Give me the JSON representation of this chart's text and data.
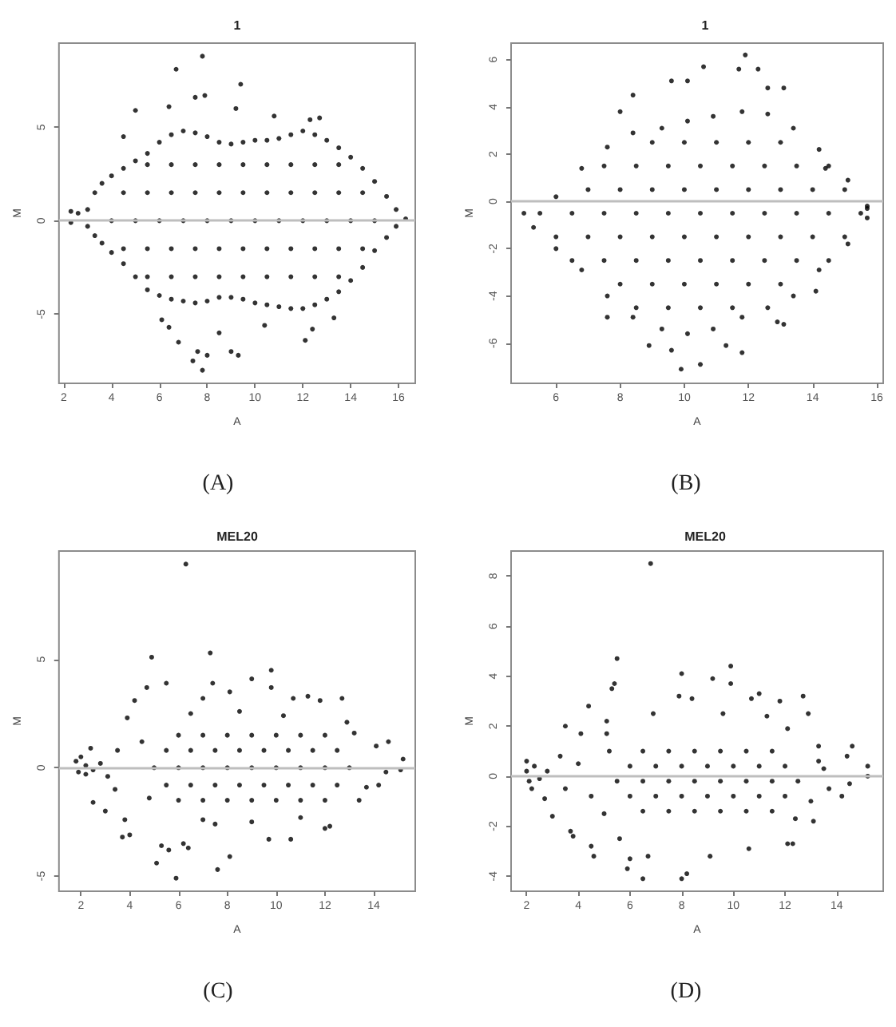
{
  "chart_data": [
    {
      "type": "scatter",
      "title": "1",
      "xlabel": "A",
      "ylabel": "M",
      "xlim": [
        1.8,
        16.7
      ],
      "ylim": [
        -8.7,
        9.5
      ],
      "xticks": [
        2,
        4,
        6,
        8,
        10,
        12,
        14,
        16
      ],
      "yticks": [
        -5,
        0,
        5
      ],
      "marker": "circle",
      "ref_lines": [
        {
          "axis": "y",
          "value": 0,
          "color": "#bebebe"
        }
      ],
      "annotations": [
        "(A)"
      ],
      "series": [
        {
          "color": "#000000",
          "x": [
            3,
            3.3,
            3.6,
            4,
            4.5,
            5,
            5.5,
            6,
            6.5,
            7,
            7.5,
            8,
            8.5,
            9,
            9.5,
            10,
            10.5,
            11,
            11.5,
            12,
            12.5,
            13,
            13.5,
            14,
            14.5,
            15,
            15.5,
            15.9,
            3,
            3.3,
            3.6,
            4,
            4.5,
            5,
            5.5,
            6,
            6.5,
            7,
            7.5,
            8,
            8.5,
            9,
            9.5,
            10,
            10.5,
            11,
            11.5,
            12,
            12.5,
            13,
            13.5,
            14,
            14.5,
            15,
            15.5,
            15.9,
            5.5,
            6.5,
            7.5,
            8.5,
            9.5,
            10.5,
            11.5,
            12.5,
            13.5,
            4.5,
            5.5,
            6.5,
            7.5,
            8.5,
            9.5,
            10.5,
            11.5,
            12.5,
            13.5,
            14.5,
            4,
            5,
            6,
            7,
            8,
            9,
            10,
            11,
            12,
            13,
            14,
            15,
            4.5,
            5.5,
            6.5,
            7.5,
            8.5,
            9.5,
            10.5,
            11.5,
            12.5,
            13.5,
            14.5,
            5.5,
            6.5,
            7.5,
            8.5,
            9.5,
            10.5,
            11.5,
            12.5,
            13.5,
            7.8,
            6.7,
            9.4,
            7.5,
            7.9,
            5,
            4.5,
            9.2,
            10.8,
            12.7,
            12.3,
            6.4,
            2.3,
            2.3,
            2.6,
            16.3,
            7.8,
            7.4,
            9.3,
            9,
            6.8,
            8,
            12.1,
            7.6,
            12.4,
            10.4,
            6.4,
            13.3,
            8.5,
            6.1
          ],
          "values": [
            0.6,
            1.5,
            2,
            2.4,
            2.8,
            3.2,
            3.6,
            4.2,
            4.6,
            4.8,
            4.7,
            4.5,
            4.2,
            4.1,
            4.2,
            4.3,
            4.3,
            4.4,
            4.6,
            4.8,
            4.6,
            4.3,
            3.9,
            3.4,
            2.8,
            2.1,
            1.3,
            0.6,
            -0.3,
            -0.8,
            -1.2,
            -1.7,
            -2.3,
            -3,
            -3.7,
            -4,
            -4.2,
            -4.3,
            -4.4,
            -4.3,
            -4.1,
            -4.1,
            -4.2,
            -4.4,
            -4.5,
            -4.6,
            -4.7,
            -4.7,
            -4.5,
            -4.2,
            -3.8,
            -3.2,
            -2.5,
            -1.6,
            -0.9,
            -0.3,
            3,
            3,
            3,
            3,
            3,
            3,
            3,
            3,
            3,
            1.5,
            1.5,
            1.5,
            1.5,
            1.5,
            1.5,
            1.5,
            1.5,
            1.5,
            1.5,
            1.5,
            0,
            0,
            0,
            0,
            0,
            0,
            0,
            0,
            0,
            0,
            0,
            0,
            -1.5,
            -1.5,
            -1.5,
            -1.5,
            -1.5,
            -1.5,
            -1.5,
            -1.5,
            -1.5,
            -1.5,
            -1.5,
            -3,
            -3,
            -3,
            -3,
            -3,
            -3,
            -3,
            -3,
            -3,
            8.8,
            8.1,
            7.3,
            6.6,
            6.7,
            5.9,
            4.5,
            6,
            5.6,
            5.5,
            5.4,
            6.1,
            0.5,
            -0.1,
            0.4,
            0.1,
            -8,
            -7.5,
            -7.2,
            -7,
            -6.5,
            -7.2,
            -6.4,
            -7,
            -5.8,
            -5.6,
            -5.7,
            -5.2,
            -6,
            -5.3
          ]
        }
      ]
    },
    {
      "type": "scatter",
      "title": "1",
      "xlabel": "A",
      "ylabel": "M",
      "xlim": [
        4.6,
        16.2
      ],
      "ylim": [
        -7.7,
        6.7
      ],
      "xticks": [
        6,
        8,
        10,
        12,
        14,
        16
      ],
      "yticks": [
        -6,
        -4,
        -2,
        0,
        2,
        4,
        6
      ],
      "marker": "circle",
      "ref_lines": [
        {
          "axis": "y",
          "value": 0,
          "color": "#bebebe"
        }
      ],
      "annotations": [
        "(B)"
      ],
      "series": [
        {
          "color": "#000000",
          "x": [
            5,
            6,
            6.8,
            7.6,
            8.4,
            9.3,
            10.1,
            10.9,
            11.8,
            12.6,
            13.4,
            14.2,
            15.1,
            15.7,
            5.3,
            6,
            6.8,
            7.6,
            8.4,
            9.3,
            10.1,
            10.9,
            11.8,
            12.6,
            13.4,
            14.2,
            15.1,
            15.7,
            9,
            10,
            11,
            12,
            13,
            7.5,
            8.5,
            9.5,
            10.5,
            11.5,
            12.5,
            13.5,
            14.5,
            7,
            8,
            9,
            10,
            11,
            12,
            13,
            14,
            15,
            5.5,
            6.5,
            7.5,
            8.5,
            9.5,
            10.5,
            11.5,
            12.5,
            13.5,
            14.5,
            15.5,
            6,
            7,
            8,
            9,
            10,
            11,
            12,
            13,
            14,
            15,
            6.5,
            7.5,
            8.5,
            9.5,
            10.5,
            11.5,
            12.5,
            13.5,
            14.5,
            8,
            9,
            10,
            11,
            12,
            13,
            8.5,
            9.5,
            10.5,
            11.5,
            11.9,
            12.3,
            11.7,
            10.6,
            10.1,
            9.6,
            8.4,
            12.6,
            13.1,
            8,
            14.4,
            9.9,
            10.5,
            11.3,
            11.8,
            8.9,
            9.6,
            7.6,
            12.9,
            13.1,
            14.1,
            15.7
          ],
          "values": [
            -0.5,
            0.2,
            1.4,
            2.3,
            2.9,
            3.1,
            3.4,
            3.6,
            3.8,
            3.7,
            3.1,
            2.2,
            0.9,
            -0.2,
            -1.1,
            -2,
            -2.9,
            -4,
            -4.9,
            -5.4,
            -5.6,
            -5.4,
            -4.9,
            -4.5,
            -4,
            -2.9,
            -1.8,
            -0.7,
            2.5,
            2.5,
            2.5,
            2.5,
            2.5,
            1.5,
            1.5,
            1.5,
            1.5,
            1.5,
            1.5,
            1.5,
            1.5,
            0.5,
            0.5,
            0.5,
            0.5,
            0.5,
            0.5,
            0.5,
            0.5,
            0.5,
            -0.5,
            -0.5,
            -0.5,
            -0.5,
            -0.5,
            -0.5,
            -0.5,
            -0.5,
            -0.5,
            -0.5,
            -0.5,
            -1.5,
            -1.5,
            -1.5,
            -1.5,
            -1.5,
            -1.5,
            -1.5,
            -1.5,
            -1.5,
            -1.5,
            -2.5,
            -2.5,
            -2.5,
            -2.5,
            -2.5,
            -2.5,
            -2.5,
            -2.5,
            -2.5,
            -3.5,
            -3.5,
            -3.5,
            -3.5,
            -3.5,
            -3.5,
            -4.5,
            -4.5,
            -4.5,
            -4.5,
            6.2,
            5.6,
            5.6,
            5.7,
            5.1,
            5.1,
            4.5,
            4.8,
            4.8,
            3.8,
            1.4,
            -7.1,
            -6.9,
            -6.1,
            -6.4,
            -6.1,
            -6.3,
            -4.9,
            -5.1,
            -5.2,
            -3.8,
            -0.3
          ]
        }
      ]
    },
    {
      "type": "scatter",
      "title": "MEL20",
      "xlabel": "A",
      "ylabel": "M",
      "xlim": [
        1.1,
        15.7
      ],
      "ylim": [
        -5.7,
        10
      ],
      "xticks": [
        2,
        4,
        6,
        8,
        10,
        12,
        14
      ],
      "yticks": [
        -5,
        0,
        5
      ],
      "marker": "circle",
      "ref_lines": [
        {
          "axis": "y",
          "value": 0,
          "color": "#bebebe"
        }
      ],
      "annotations": [
        "(C)"
      ],
      "series": [
        {
          "color": "#000000",
          "x": [
            6.3,
            4.9,
            7.3,
            5.5,
            7.4,
            9.8,
            9,
            9.8,
            8.1,
            4.7,
            4.2,
            7,
            10.7,
            11.3,
            11.8,
            12.7,
            12.9,
            3.9,
            2.4,
            14.1,
            14.6,
            15.2,
            15.1,
            14.5,
            14.2,
            5.9,
            7.6,
            8.1,
            5.1,
            3.7,
            4,
            5.3,
            5.6,
            6.2,
            6.4,
            9.7,
            10.6,
            12,
            12.2,
            3.8,
            3,
            2.5,
            7,
            13.7,
            1.8,
            1.9,
            2.2,
            2.2,
            2.5,
            2.8,
            3.1,
            2,
            6,
            7,
            8,
            9,
            10,
            11,
            12,
            5.5,
            6.5,
            7.5,
            8.5,
            9.5,
            10.5,
            11.5,
            12.5,
            5,
            6,
            7,
            8,
            9,
            10,
            11,
            12,
            13,
            5.5,
            6.5,
            7.5,
            8.5,
            9.5,
            10.5,
            11.5,
            12.5,
            6,
            7,
            8,
            9,
            10,
            11,
            12,
            4.5,
            4.8,
            3.5,
            3.4,
            13.2,
            13.4,
            6.5,
            8.5,
            10.3,
            7.5,
            9,
            11
          ],
          "values": [
            9.4,
            5.1,
            5.3,
            3.9,
            3.9,
            4.5,
            4.1,
            3.7,
            3.5,
            3.7,
            3.1,
            3.2,
            3.2,
            3.3,
            3.1,
            3.2,
            2.1,
            2.3,
            0.9,
            1,
            1.2,
            0.4,
            -0.1,
            -0.2,
            -0.8,
            -5.1,
            -4.7,
            -4.1,
            -4.4,
            -3.2,
            -3.1,
            -3.6,
            -3.8,
            -3.5,
            -3.7,
            -3.3,
            -3.3,
            -2.8,
            -2.7,
            -2.4,
            -2,
            -1.6,
            -2.4,
            -0.9,
            0.3,
            -0.2,
            0.1,
            -0.3,
            -0.1,
            0.2,
            -0.4,
            0.5,
            1.5,
            1.5,
            1.5,
            1.5,
            1.5,
            1.5,
            1.5,
            0.8,
            0.8,
            0.8,
            0.8,
            0.8,
            0.8,
            0.8,
            0.8,
            0,
            0,
            0,
            0,
            0,
            0,
            0,
            0,
            0,
            -0.8,
            -0.8,
            -0.8,
            -0.8,
            -0.8,
            -0.8,
            -0.8,
            -0.8,
            -1.5,
            -1.5,
            -1.5,
            -1.5,
            -1.5,
            -1.5,
            -1.5,
            1.2,
            -1.4,
            0.8,
            -1,
            1.6,
            -1.5,
            2.5,
            2.6,
            2.4,
            -2.6,
            -2.5,
            -2.3
          ]
        }
      ]
    },
    {
      "type": "scatter",
      "title": "MEL20",
      "xlabel": "A",
      "ylabel": "M",
      "xlim": [
        1.4,
        15.8
      ],
      "ylim": [
        -4.6,
        9
      ],
      "xticks": [
        2,
        4,
        6,
        8,
        10,
        12,
        14
      ],
      "yticks": [
        -4,
        -2,
        0,
        2,
        4,
        6,
        8
      ],
      "marker": "circle",
      "ref_lines": [
        {
          "axis": "y",
          "value": 0,
          "color": "#bebebe"
        }
      ],
      "annotations": [
        "(D)"
      ],
      "series": [
        {
          "color": "#000000",
          "x": [
            6.8,
            5.5,
            5.4,
            5.3,
            8,
            9.9,
            9.2,
            9.9,
            7.9,
            8.4,
            4.4,
            11,
            10.7,
            11.8,
            12.7,
            12.9,
            14.6,
            15.2,
            14.4,
            15.2,
            14.2,
            14.5,
            13.7,
            6.5,
            8,
            8.2,
            4.6,
            5.9,
            6,
            6.7,
            4.5,
            3.8,
            3.7,
            9.1,
            10.6,
            12.1,
            12.3,
            13.1,
            5.6,
            3,
            2.7,
            12.4,
            2,
            2.1,
            2.3,
            2.5,
            2.2,
            2.8,
            2,
            4.1,
            3.5,
            5.1,
            5.1,
            6.9,
            9.6,
            11.3,
            12.1,
            13.3,
            13.3,
            6.5,
            7.5,
            8.5,
            9.5,
            10.5,
            11.5,
            6,
            7,
            8,
            9,
            10,
            11,
            12,
            5.5,
            6.5,
            7.5,
            8.5,
            9.5,
            10.5,
            11.5,
            12.5,
            6,
            7,
            8,
            9,
            10,
            11,
            12,
            6.5,
            7.5,
            8.5,
            9.5,
            10.5,
            11.5,
            4,
            4.5,
            3.3,
            3.5,
            5,
            5.2,
            13,
            13.5
          ],
          "values": [
            8.5,
            4.7,
            3.7,
            3.5,
            4.1,
            4.4,
            3.9,
            3.7,
            3.2,
            3.1,
            2.8,
            3.3,
            3.1,
            3,
            3.2,
            2.5,
            1.2,
            0.4,
            0.8,
            0,
            -0.8,
            -0.3,
            -0.5,
            -4.1,
            -4.1,
            -3.9,
            -3.2,
            -3.7,
            -3.3,
            -3.2,
            -2.8,
            -2.4,
            -2.2,
            -3.2,
            -2.9,
            -2.7,
            -2.7,
            -1.8,
            -2.5,
            -1.6,
            -0.9,
            -1.7,
            0.2,
            -0.2,
            0.4,
            -0.1,
            -0.5,
            0.2,
            0.6,
            1.7,
            2,
            2.2,
            1.7,
            2.5,
            2.5,
            2.4,
            1.9,
            1.2,
            0.6,
            1,
            1,
            1,
            1,
            1,
            1,
            0.4,
            0.4,
            0.4,
            0.4,
            0.4,
            0.4,
            0.4,
            -0.2,
            -0.2,
            -0.2,
            -0.2,
            -0.2,
            -0.2,
            -0.2,
            -0.2,
            -0.8,
            -0.8,
            -0.8,
            -0.8,
            -0.8,
            -0.8,
            -0.8,
            -1.4,
            -1.4,
            -1.4,
            -1.4,
            -1.4,
            -1.4,
            0.5,
            -0.8,
            0.8,
            -0.5,
            -1.5,
            1,
            -1,
            0.3
          ]
        }
      ]
    }
  ]
}
